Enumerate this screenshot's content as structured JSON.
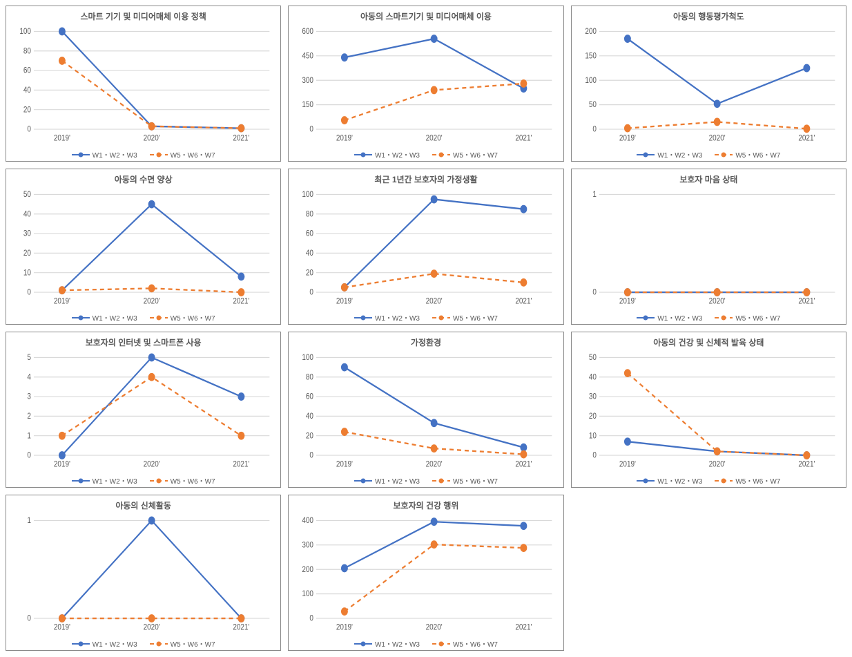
{
  "meta": {
    "categories": [
      "2019'",
      "2020'",
      "2021'"
    ],
    "series_names": [
      "W1・W2・W3",
      "W5・W6・W7"
    ],
    "colors": {
      "series1": "#4472c4",
      "series2": "#ed7d31",
      "grid": "#d9d9d9",
      "axis_text": "#595959",
      "border": "#888888",
      "background": "#ffffff"
    },
    "marker_style": "circle",
    "marker_size": 4,
    "line_width": 2,
    "series2_dash": "6,5",
    "title_fontsize": 12,
    "label_fontsize": 10
  },
  "charts": [
    {
      "title": "스마트 기기 및 미디어매체 이용 정책",
      "ylim": [
        0,
        100
      ],
      "ytick_step": 20,
      "series1": [
        100,
        3,
        1
      ],
      "series2": [
        70,
        3,
        1
      ]
    },
    {
      "title": "아동의 스마트기기 및 미디어매체 이용",
      "ylim": [
        0,
        600
      ],
      "ytick_step": 150,
      "series1": [
        440,
        555,
        250
      ],
      "series2": [
        55,
        240,
        280
      ]
    },
    {
      "title": "아동의 행동평가척도",
      "ylim": [
        0,
        200
      ],
      "ytick_step": 50,
      "series1": [
        185,
        52,
        125
      ],
      "series2": [
        2,
        15,
        1
      ]
    },
    {
      "title": "아동의 수면 양상",
      "ylim": [
        0,
        50
      ],
      "ytick_step": 10,
      "series1": [
        1,
        45,
        8
      ],
      "series2": [
        1,
        2,
        0
      ]
    },
    {
      "title": "최근 1년간 보호자의 가정생활",
      "ylim": [
        0,
        100
      ],
      "ytick_step": 20,
      "series1": [
        5,
        95,
        85
      ],
      "series2": [
        5,
        19,
        10
      ]
    },
    {
      "title": "보호자 마음 상태",
      "ylim": [
        0,
        1
      ],
      "ytick_step": 1,
      "series1": [
        0,
        0,
        0
      ],
      "series2": [
        0,
        0,
        0
      ]
    },
    {
      "title": "보호자의 인터넷 및 스마트폰 사용",
      "ylim": [
        0,
        5
      ],
      "ytick_step": 1,
      "series1": [
        0,
        5,
        3
      ],
      "series2": [
        1,
        4,
        1
      ]
    },
    {
      "title": "가정환경",
      "ylim": [
        0,
        100
      ],
      "ytick_step": 20,
      "series1": [
        90,
        33,
        8
      ],
      "series2": [
        24,
        7,
        1
      ]
    },
    {
      "title": "아동의 건강 및 신체적 발육 상태",
      "ylim": [
        0,
        50
      ],
      "ytick_step": 10,
      "series1": [
        7,
        2,
        0
      ],
      "series2": [
        42,
        2,
        0
      ]
    },
    {
      "title": "아동의 신체활동",
      "ylim": [
        0,
        1
      ],
      "ytick_step": 1,
      "series1": [
        0,
        1,
        0
      ],
      "series2": [
        0,
        0,
        0
      ]
    },
    {
      "title": "보호자의 건강 행위",
      "ylim": [
        0,
        400
      ],
      "ytick_step": 100,
      "series1": [
        205,
        395,
        378
      ],
      "series2": [
        28,
        302,
        288
      ]
    }
  ]
}
